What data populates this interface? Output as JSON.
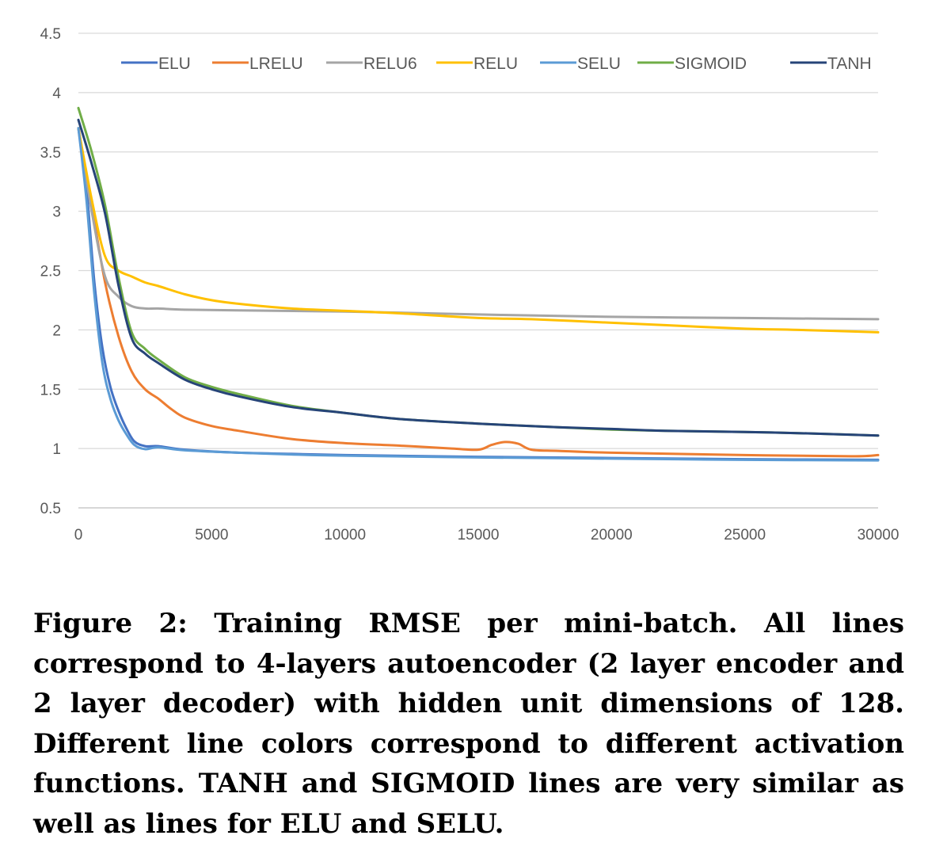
{
  "chart_data": {
    "type": "line",
    "title": "",
    "xlabel": "",
    "ylabel": "",
    "xlim": [
      0,
      30000
    ],
    "ylim": [
      0.5,
      4.5
    ],
    "x_ticks": [
      "0",
      "5000",
      "10000",
      "15000",
      "20000",
      "25000",
      "30000"
    ],
    "y_ticks": [
      "0.5",
      "1",
      "1.5",
      "2",
      "2.5",
      "3",
      "3.5",
      "4",
      "4.5"
    ],
    "grid": "horizontal",
    "legend_position": "top",
    "series": [
      {
        "name": "ELU",
        "color": "#4472C4",
        "points": [
          [
            0,
            3.7
          ],
          [
            300,
            3.2
          ],
          [
            600,
            2.4
          ],
          [
            900,
            1.85
          ],
          [
            1200,
            1.52
          ],
          [
            1500,
            1.32
          ],
          [
            1800,
            1.17
          ],
          [
            2100,
            1.06
          ],
          [
            2500,
            1.02
          ],
          [
            3000,
            1.02
          ],
          [
            4000,
            0.99
          ],
          [
            6000,
            0.965
          ],
          [
            8000,
            0.955
          ],
          [
            10000,
            0.945
          ],
          [
            15000,
            0.93
          ],
          [
            20000,
            0.92
          ],
          [
            25000,
            0.91
          ],
          [
            30000,
            0.905
          ]
        ]
      },
      {
        "name": "LRELU",
        "color": "#ED7D31",
        "points": [
          [
            0,
            3.7
          ],
          [
            500,
            3.05
          ],
          [
            1000,
            2.4
          ],
          [
            1500,
            1.95
          ],
          [
            2000,
            1.65
          ],
          [
            2500,
            1.5
          ],
          [
            3000,
            1.42
          ],
          [
            3500,
            1.33
          ],
          [
            4000,
            1.26
          ],
          [
            5000,
            1.19
          ],
          [
            6000,
            1.15
          ],
          [
            8000,
            1.08
          ],
          [
            10000,
            1.045
          ],
          [
            12000,
            1.025
          ],
          [
            14000,
            1.0
          ],
          [
            15000,
            0.99
          ],
          [
            15500,
            1.03
          ],
          [
            16000,
            1.055
          ],
          [
            16500,
            1.04
          ],
          [
            17000,
            0.99
          ],
          [
            18000,
            0.98
          ],
          [
            20000,
            0.965
          ],
          [
            25000,
            0.945
          ],
          [
            29000,
            0.935
          ],
          [
            30000,
            0.945
          ]
        ]
      },
      {
        "name": "RELU6",
        "color": "#A5A5A5",
        "points": [
          [
            0,
            3.7
          ],
          [
            500,
            3.0
          ],
          [
            1000,
            2.45
          ],
          [
            1500,
            2.28
          ],
          [
            2000,
            2.2
          ],
          [
            2500,
            2.18
          ],
          [
            3000,
            2.18
          ],
          [
            4000,
            2.17
          ],
          [
            6000,
            2.165
          ],
          [
            10000,
            2.155
          ],
          [
            15000,
            2.13
          ],
          [
            20000,
            2.11
          ],
          [
            25000,
            2.1
          ],
          [
            30000,
            2.09
          ]
        ]
      },
      {
        "name": "RELU",
        "color": "#FFC000",
        "points": [
          [
            0,
            3.7
          ],
          [
            500,
            3.1
          ],
          [
            1000,
            2.62
          ],
          [
            1500,
            2.5
          ],
          [
            2000,
            2.45
          ],
          [
            2500,
            2.4
          ],
          [
            3000,
            2.37
          ],
          [
            4000,
            2.3
          ],
          [
            5000,
            2.25
          ],
          [
            6000,
            2.22
          ],
          [
            8000,
            2.18
          ],
          [
            10000,
            2.16
          ],
          [
            12000,
            2.14
          ],
          [
            15000,
            2.1
          ],
          [
            17000,
            2.09
          ],
          [
            20000,
            2.06
          ],
          [
            22000,
            2.04
          ],
          [
            25000,
            2.01
          ],
          [
            27000,
            2.0
          ],
          [
            30000,
            1.98
          ]
        ]
      },
      {
        "name": "SELU",
        "color": "#5B9BD5",
        "points": [
          [
            0,
            3.7
          ],
          [
            300,
            3.1
          ],
          [
            600,
            2.3
          ],
          [
            900,
            1.72
          ],
          [
            1200,
            1.42
          ],
          [
            1500,
            1.24
          ],
          [
            1800,
            1.12
          ],
          [
            2100,
            1.03
          ],
          [
            2500,
            0.995
          ],
          [
            3000,
            1.01
          ],
          [
            4000,
            0.985
          ],
          [
            6000,
            0.965
          ],
          [
            8000,
            0.95
          ],
          [
            10000,
            0.94
          ],
          [
            15000,
            0.925
          ],
          [
            20000,
            0.915
          ],
          [
            25000,
            0.905
          ],
          [
            30000,
            0.9
          ]
        ]
      },
      {
        "name": "SIGMOID",
        "color": "#70AD47",
        "points": [
          [
            0,
            3.87
          ],
          [
            500,
            3.5
          ],
          [
            1000,
            3.05
          ],
          [
            1500,
            2.45
          ],
          [
            2000,
            1.98
          ],
          [
            2500,
            1.84
          ],
          [
            3000,
            1.75
          ],
          [
            4000,
            1.6
          ],
          [
            5000,
            1.52
          ],
          [
            6000,
            1.46
          ],
          [
            8000,
            1.36
          ],
          [
            10000,
            1.3
          ],
          [
            12000,
            1.25
          ],
          [
            15000,
            1.21
          ],
          [
            18000,
            1.18
          ],
          [
            20000,
            1.16
          ],
          [
            22000,
            1.15
          ],
          [
            25000,
            1.14
          ],
          [
            27000,
            1.13
          ],
          [
            30000,
            1.11
          ]
        ]
      },
      {
        "name": "TANH",
        "color": "#264478",
        "points": [
          [
            0,
            3.77
          ],
          [
            500,
            3.4
          ],
          [
            1000,
            2.98
          ],
          [
            1500,
            2.38
          ],
          [
            2000,
            1.93
          ],
          [
            2500,
            1.8
          ],
          [
            3000,
            1.72
          ],
          [
            4000,
            1.58
          ],
          [
            5000,
            1.5
          ],
          [
            6000,
            1.44
          ],
          [
            8000,
            1.35
          ],
          [
            10000,
            1.3
          ],
          [
            12000,
            1.25
          ],
          [
            15000,
            1.21
          ],
          [
            18000,
            1.18
          ],
          [
            20000,
            1.165
          ],
          [
            22000,
            1.15
          ],
          [
            25000,
            1.14
          ],
          [
            27000,
            1.13
          ],
          [
            30000,
            1.11
          ]
        ]
      }
    ]
  },
  "caption": "Figure 2: Training RMSE per mini-batch. All lines correspond to 4-layers autoencoder (2 layer encoder and 2 layer decoder) with hidden unit dimensions of 128. Different line colors correspond to different activation functions. TANH and SIGMOID lines are very similar as well as lines for ELU and SELU.",
  "colors": {
    "grid": "#D9D9D9",
    "axis": "#BFBFBF",
    "tick_text": "#595959"
  }
}
